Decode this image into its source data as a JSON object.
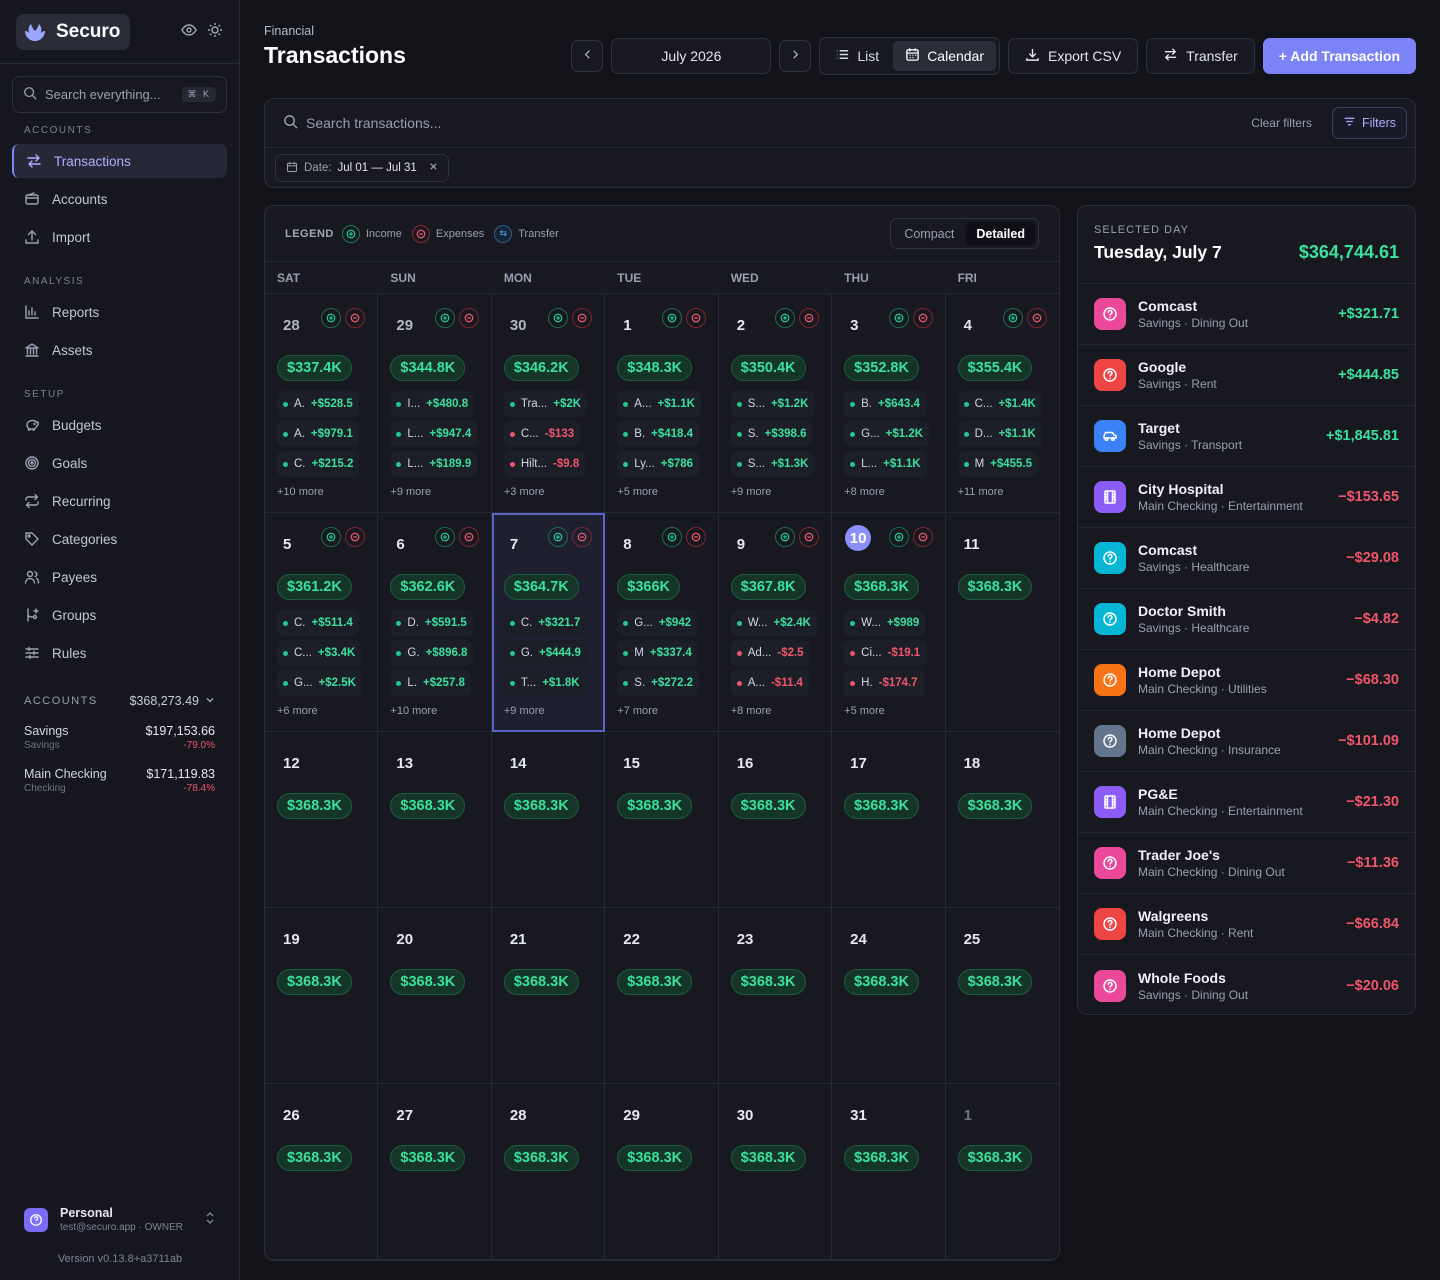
{
  "sidebar": {
    "brand": "Securo",
    "search_placeholder": "Search everything...",
    "search_shortcut": "⌘ K",
    "sections": [
      {
        "label": "ACCOUNTS",
        "items": [
          {
            "label": "Transactions",
            "icon": "arrows-swap-icon",
            "active": true
          },
          {
            "label": "Accounts",
            "icon": "wallet-icon"
          },
          {
            "label": "Import",
            "icon": "upload-icon"
          }
        ]
      },
      {
        "label": "ANALYSIS",
        "items": [
          {
            "label": "Reports",
            "icon": "bar-chart-icon"
          },
          {
            "label": "Assets",
            "icon": "bank-icon"
          }
        ]
      },
      {
        "label": "SETUP",
        "items": [
          {
            "label": "Budgets",
            "icon": "piggy-bank-icon"
          },
          {
            "label": "Goals",
            "icon": "target-icon"
          },
          {
            "label": "Recurring",
            "icon": "repeat-icon"
          },
          {
            "label": "Categories",
            "icon": "tag-icon"
          },
          {
            "label": "Payees",
            "icon": "users-icon"
          },
          {
            "label": "Groups",
            "icon": "branch-icon"
          },
          {
            "label": "Rules",
            "icon": "sliders-icon"
          }
        ]
      }
    ],
    "accounts_label": "ACCOUNTS",
    "accounts_total": "$368,273.49",
    "accounts": [
      {
        "name": "Savings",
        "type": "Savings",
        "balance": "$197,153.66",
        "change": "-79.0%"
      },
      {
        "name": "Main Checking",
        "type": "Checking",
        "balance": "$171,119.83",
        "change": "-78.4%"
      }
    ],
    "profile": {
      "name": "Personal",
      "email": "test@securo.app · OWNER"
    },
    "version": "Version v0.13.8+a3711ab"
  },
  "header": {
    "breadcrumb": "Financial",
    "title": "Transactions",
    "month": "July 2026",
    "view_list": "List",
    "view_calendar": "Calendar",
    "export": "Export CSV",
    "transfer": "Transfer",
    "add": "+ Add Transaction"
  },
  "search": {
    "placeholder": "Search transactions...",
    "clear": "Clear filters",
    "filters": "Filters",
    "chip_label": "Date:",
    "chip_value": "Jul 01 — Jul 31"
  },
  "calendar": {
    "legend_label": "LEGEND",
    "legend": [
      {
        "label": "Income",
        "kind": "inc"
      },
      {
        "label": "Expenses",
        "kind": "exp"
      },
      {
        "label": "Transfer",
        "kind": "tr"
      }
    ],
    "view_compact": "Compact",
    "view_detailed": "Detailed",
    "weekdays": [
      "SAT",
      "SUN",
      "MON",
      "TUE",
      "WED",
      "THU",
      "FRI"
    ],
    "days": [
      {
        "n": "28",
        "state": "muted",
        "icons": true,
        "bal": "$337.4K",
        "tx": [
          [
            "A.",
            "+$528.5"
          ],
          [
            "A.",
            "+$979.1"
          ],
          [
            "C.",
            "+$215.2"
          ]
        ],
        "more": "+10 more"
      },
      {
        "n": "29",
        "state": "muted",
        "icons": true,
        "bal": "$344.8K",
        "tx": [
          [
            "I...",
            "+$480.8"
          ],
          [
            "L...",
            "+$947.4"
          ],
          [
            "L...",
            "+$189.9"
          ]
        ],
        "more": "+9 more"
      },
      {
        "n": "30",
        "state": "muted",
        "icons": true,
        "bal": "$346.2K",
        "tx": [
          [
            "Tra...",
            "+$2K"
          ],
          [
            "C...",
            "-$133"
          ],
          [
            "Hilt...",
            "-$9.8"
          ]
        ],
        "more": "+3 more"
      },
      {
        "n": "1",
        "icons": true,
        "bal": "$348.3K",
        "tx": [
          [
            "A...",
            "+$1.1K"
          ],
          [
            "B.",
            "+$418.4"
          ],
          [
            "Ly...",
            "+$786"
          ]
        ],
        "more": "+5 more"
      },
      {
        "n": "2",
        "icons": true,
        "bal": "$350.4K",
        "tx": [
          [
            "S...",
            "+$1.2K"
          ],
          [
            "S.",
            "+$398.6"
          ],
          [
            "S...",
            "+$1.3K"
          ]
        ],
        "more": "+9 more"
      },
      {
        "n": "3",
        "icons": true,
        "bal": "$352.8K",
        "tx": [
          [
            "B.",
            "+$643.4"
          ],
          [
            "G...",
            "+$1.2K"
          ],
          [
            "L...",
            "+$1.1K"
          ]
        ],
        "more": "+8 more"
      },
      {
        "n": "4",
        "icons": true,
        "bal": "$355.4K",
        "tx": [
          [
            "C...",
            "+$1.4K"
          ],
          [
            "D...",
            "+$1.1K"
          ],
          [
            "M",
            "+$455.5"
          ]
        ],
        "more": "+11 more"
      },
      {
        "n": "5",
        "icons": true,
        "bal": "$361.2K",
        "tx": [
          [
            "C.",
            "+$511.4"
          ],
          [
            "C...",
            "+$3.4K"
          ],
          [
            "G...",
            "+$2.5K"
          ]
        ],
        "more": "+6 more"
      },
      {
        "n": "6",
        "icons": true,
        "bal": "$362.6K",
        "tx": [
          [
            "D.",
            "+$591.5"
          ],
          [
            "G.",
            "+$896.8"
          ],
          [
            "L.",
            "+$257.8"
          ]
        ],
        "more": "+10 more"
      },
      {
        "n": "7",
        "icons": true,
        "selected": true,
        "bal": "$364.7K",
        "tx": [
          [
            "C.",
            "+$321.7"
          ],
          [
            "G.",
            "+$444.9"
          ],
          [
            "T...",
            "+$1.8K"
          ]
        ],
        "more": "+9 more"
      },
      {
        "n": "8",
        "icons": true,
        "bal": "$366K",
        "tx": [
          [
            "G...",
            "+$942"
          ],
          [
            "M",
            "+$337.4"
          ],
          [
            "S.",
            "+$272.2"
          ]
        ],
        "more": "+7 more"
      },
      {
        "n": "9",
        "icons": true,
        "bal": "$367.8K",
        "tx": [
          [
            "W...",
            "+$2.4K"
          ],
          [
            "Ad...",
            "-$2.5"
          ],
          [
            "A...",
            "-$11.4"
          ]
        ],
        "more": "+8 more"
      },
      {
        "n": "10",
        "today": true,
        "icons": true,
        "bal": "$368.3K",
        "tx": [
          [
            "W...",
            "+$989"
          ],
          [
            "Ci...",
            "-$19.1"
          ],
          [
            "H.",
            "-$174.7"
          ]
        ],
        "more": "+5 more"
      },
      {
        "n": "11",
        "bal": "$368.3K"
      },
      {
        "n": "12",
        "bal": "$368.3K"
      },
      {
        "n": "13",
        "bal": "$368.3K"
      },
      {
        "n": "14",
        "bal": "$368.3K"
      },
      {
        "n": "15",
        "bal": "$368.3K"
      },
      {
        "n": "16",
        "bal": "$368.3K"
      },
      {
        "n": "17",
        "bal": "$368.3K"
      },
      {
        "n": "18",
        "bal": "$368.3K"
      },
      {
        "n": "19",
        "bal": "$368.3K"
      },
      {
        "n": "20",
        "bal": "$368.3K"
      },
      {
        "n": "21",
        "bal": "$368.3K"
      },
      {
        "n": "22",
        "bal": "$368.3K"
      },
      {
        "n": "23",
        "bal": "$368.3K"
      },
      {
        "n": "24",
        "bal": "$368.3K"
      },
      {
        "n": "25",
        "bal": "$368.3K"
      },
      {
        "n": "26",
        "bal": "$368.3K"
      },
      {
        "n": "27",
        "bal": "$368.3K"
      },
      {
        "n": "28",
        "bal": "$368.3K"
      },
      {
        "n": "29",
        "bal": "$368.3K"
      },
      {
        "n": "30",
        "bal": "$368.3K"
      },
      {
        "n": "31",
        "bal": "$368.3K"
      },
      {
        "n": "1",
        "state": "other",
        "bal": "$368.3K"
      }
    ]
  },
  "selected_day": {
    "label": "SELECTED DAY",
    "date": "Tuesday, July 7",
    "total": "$364,744.61",
    "items": [
      {
        "payee": "Comcast",
        "meta": "Savings · Dining Out",
        "amount": "+$321.71",
        "color": "#ec4899",
        "icon": "question-icon"
      },
      {
        "payee": "Google",
        "meta": "Savings · Rent",
        "amount": "+$444.85",
        "color": "#ef4444",
        "icon": "question-icon"
      },
      {
        "payee": "Target",
        "meta": "Savings · Transport",
        "amount": "+$1,845.81",
        "color": "#3b82f6",
        "icon": "car-icon"
      },
      {
        "payee": "City Hospital",
        "meta": "Main Checking · Entertainment",
        "amount": "−$153.65",
        "color": "#8b5cf6",
        "icon": "film-icon"
      },
      {
        "payee": "Comcast",
        "meta": "Savings · Healthcare",
        "amount": "−$29.08",
        "color": "#06b6d4",
        "icon": "question-icon"
      },
      {
        "payee": "Doctor Smith",
        "meta": "Savings · Healthcare",
        "amount": "−$4.82",
        "color": "#06b6d4",
        "icon": "question-icon"
      },
      {
        "payee": "Home Depot",
        "meta": "Main Checking · Utilities",
        "amount": "−$68.30",
        "color": "#f97316",
        "icon": "question-icon"
      },
      {
        "payee": "Home Depot",
        "meta": "Main Checking · Insurance",
        "amount": "−$101.09",
        "color": "#64748b",
        "icon": "question-icon"
      },
      {
        "payee": "PG&E",
        "meta": "Main Checking · Entertainment",
        "amount": "−$21.30",
        "color": "#8b5cf6",
        "icon": "film-icon"
      },
      {
        "payee": "Trader Joe's",
        "meta": "Main Checking · Dining Out",
        "amount": "−$11.36",
        "color": "#ec4899",
        "icon": "question-icon"
      },
      {
        "payee": "Walgreens",
        "meta": "Main Checking · Rent",
        "amount": "−$66.84",
        "color": "#ef4444",
        "icon": "question-icon"
      },
      {
        "payee": "Whole Foods",
        "meta": "Savings · Dining Out",
        "amount": "−$20.06",
        "color": "#ec4899",
        "icon": "question-icon"
      }
    ]
  }
}
